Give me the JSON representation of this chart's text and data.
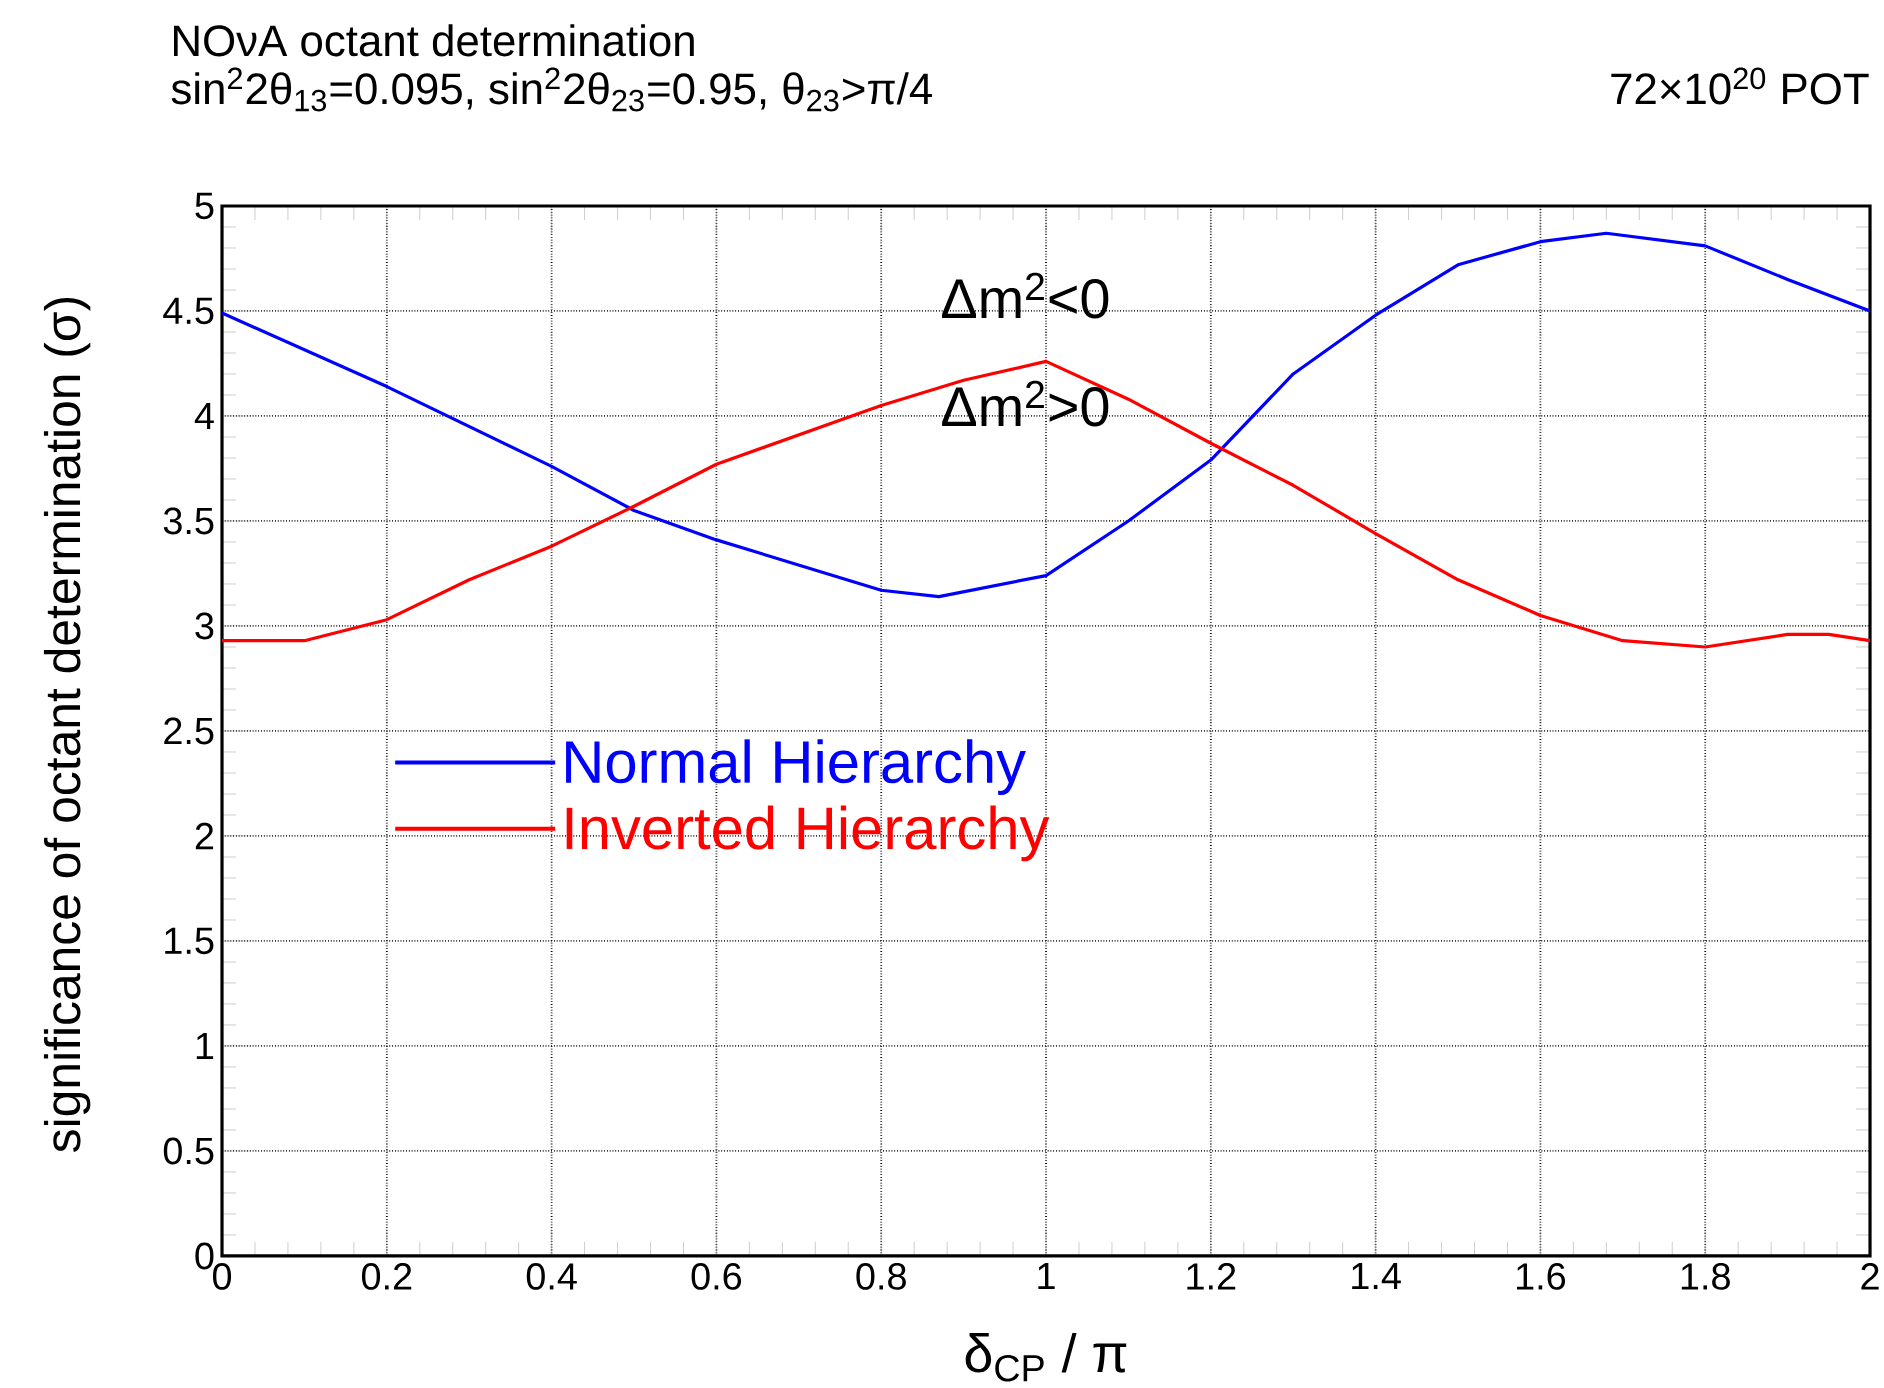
{
  "chart_data": {
    "type": "line",
    "title": "NOνA octant determination",
    "subtitle": "sin$^{2}$2θ$_{13}$=0.095, sin$^{2}$2θ$_{23}$=0.95, θ$_{23}$>π/4",
    "xlabel": "δ$_{CP}$ / π",
    "ylabel": "significance of octant determination (σ)",
    "annotations": [
      "72×10$^{20}$ POT",
      "Δm$^{2}$<0",
      "Δm$^{2}$>0"
    ],
    "xlim": [
      0,
      2
    ],
    "ylim": [
      0,
      5
    ],
    "xticks": [
      0,
      0.2,
      0.4,
      0.6,
      0.8,
      1,
      1.2,
      1.4,
      1.6,
      1.8,
      2
    ],
    "yticks": [
      0,
      0.5,
      1,
      1.5,
      2,
      2.5,
      3,
      3.5,
      4,
      4.5,
      5
    ],
    "grid": true,
    "legend": "left",
    "line_style": "solid",
    "series": [
      {
        "name": "Normal Hierarchy",
        "color": "#0000ff",
        "x": [
          0,
          0.2,
          0.4,
          0.5,
          0.6,
          0.8,
          0.87,
          1.0,
          1.1,
          1.2,
          1.3,
          1.4,
          1.5,
          1.6,
          1.68,
          1.8,
          1.9,
          2
        ],
        "values": [
          4.49,
          4.14,
          3.76,
          3.55,
          3.41,
          3.17,
          3.14,
          3.24,
          3.5,
          3.79,
          4.2,
          4.48,
          4.72,
          4.83,
          4.87,
          4.81,
          4.65,
          4.5
        ]
      },
      {
        "name": "Inverted Hierarchy",
        "color": "#ff0000",
        "x": [
          0,
          0.1,
          0.2,
          0.3,
          0.4,
          0.5,
          0.6,
          0.8,
          0.9,
          1.0,
          1.1,
          1.2,
          1.3,
          1.4,
          1.5,
          1.6,
          1.7,
          1.8,
          1.9,
          1.95,
          2
        ],
        "values": [
          2.93,
          2.93,
          3.03,
          3.22,
          3.38,
          3.57,
          3.77,
          4.05,
          4.17,
          4.26,
          4.08,
          3.87,
          3.67,
          3.44,
          3.22,
          3.05,
          2.93,
          2.9,
          2.96,
          2.96,
          2.93
        ]
      }
    ]
  }
}
